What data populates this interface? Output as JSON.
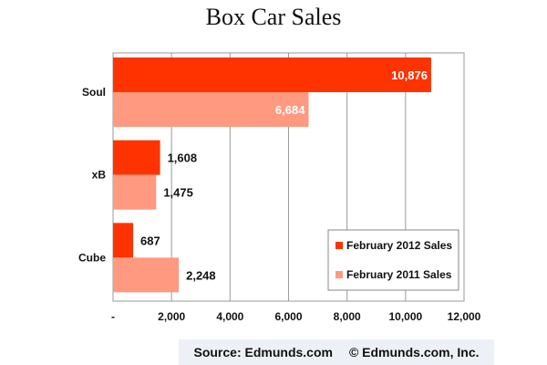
{
  "chart_data": {
    "type": "bar",
    "orientation": "horizontal",
    "title": "Box Car Sales",
    "xlabel": "",
    "ylabel": "",
    "categories": [
      "Soul",
      "xB",
      "Cube"
    ],
    "series": [
      {
        "name": "February 2012 Sales",
        "values": [
          10876,
          1608,
          687
        ],
        "labels": [
          "10,876",
          "1,608",
          "687"
        ],
        "color": "#ff3300"
      },
      {
        "name": "February 2011 Sales",
        "values": [
          6684,
          1475,
          2248
        ],
        "labels": [
          "6,684",
          "1,475",
          "2,248"
        ],
        "color": "#ff9980"
      }
    ],
    "xlim": [
      0,
      12000
    ],
    "xticks": [
      0,
      2000,
      4000,
      6000,
      8000,
      10000,
      12000
    ],
    "xtick_labels": [
      "-",
      "2,000",
      "4,000",
      "6,000",
      "8,000",
      "10,000",
      "12,000"
    ],
    "grid": true,
    "legend_position": "bottom-right"
  },
  "footer": {
    "source": "Source: Edmunds.com",
    "copyright": "© Edmunds.com, Inc."
  }
}
